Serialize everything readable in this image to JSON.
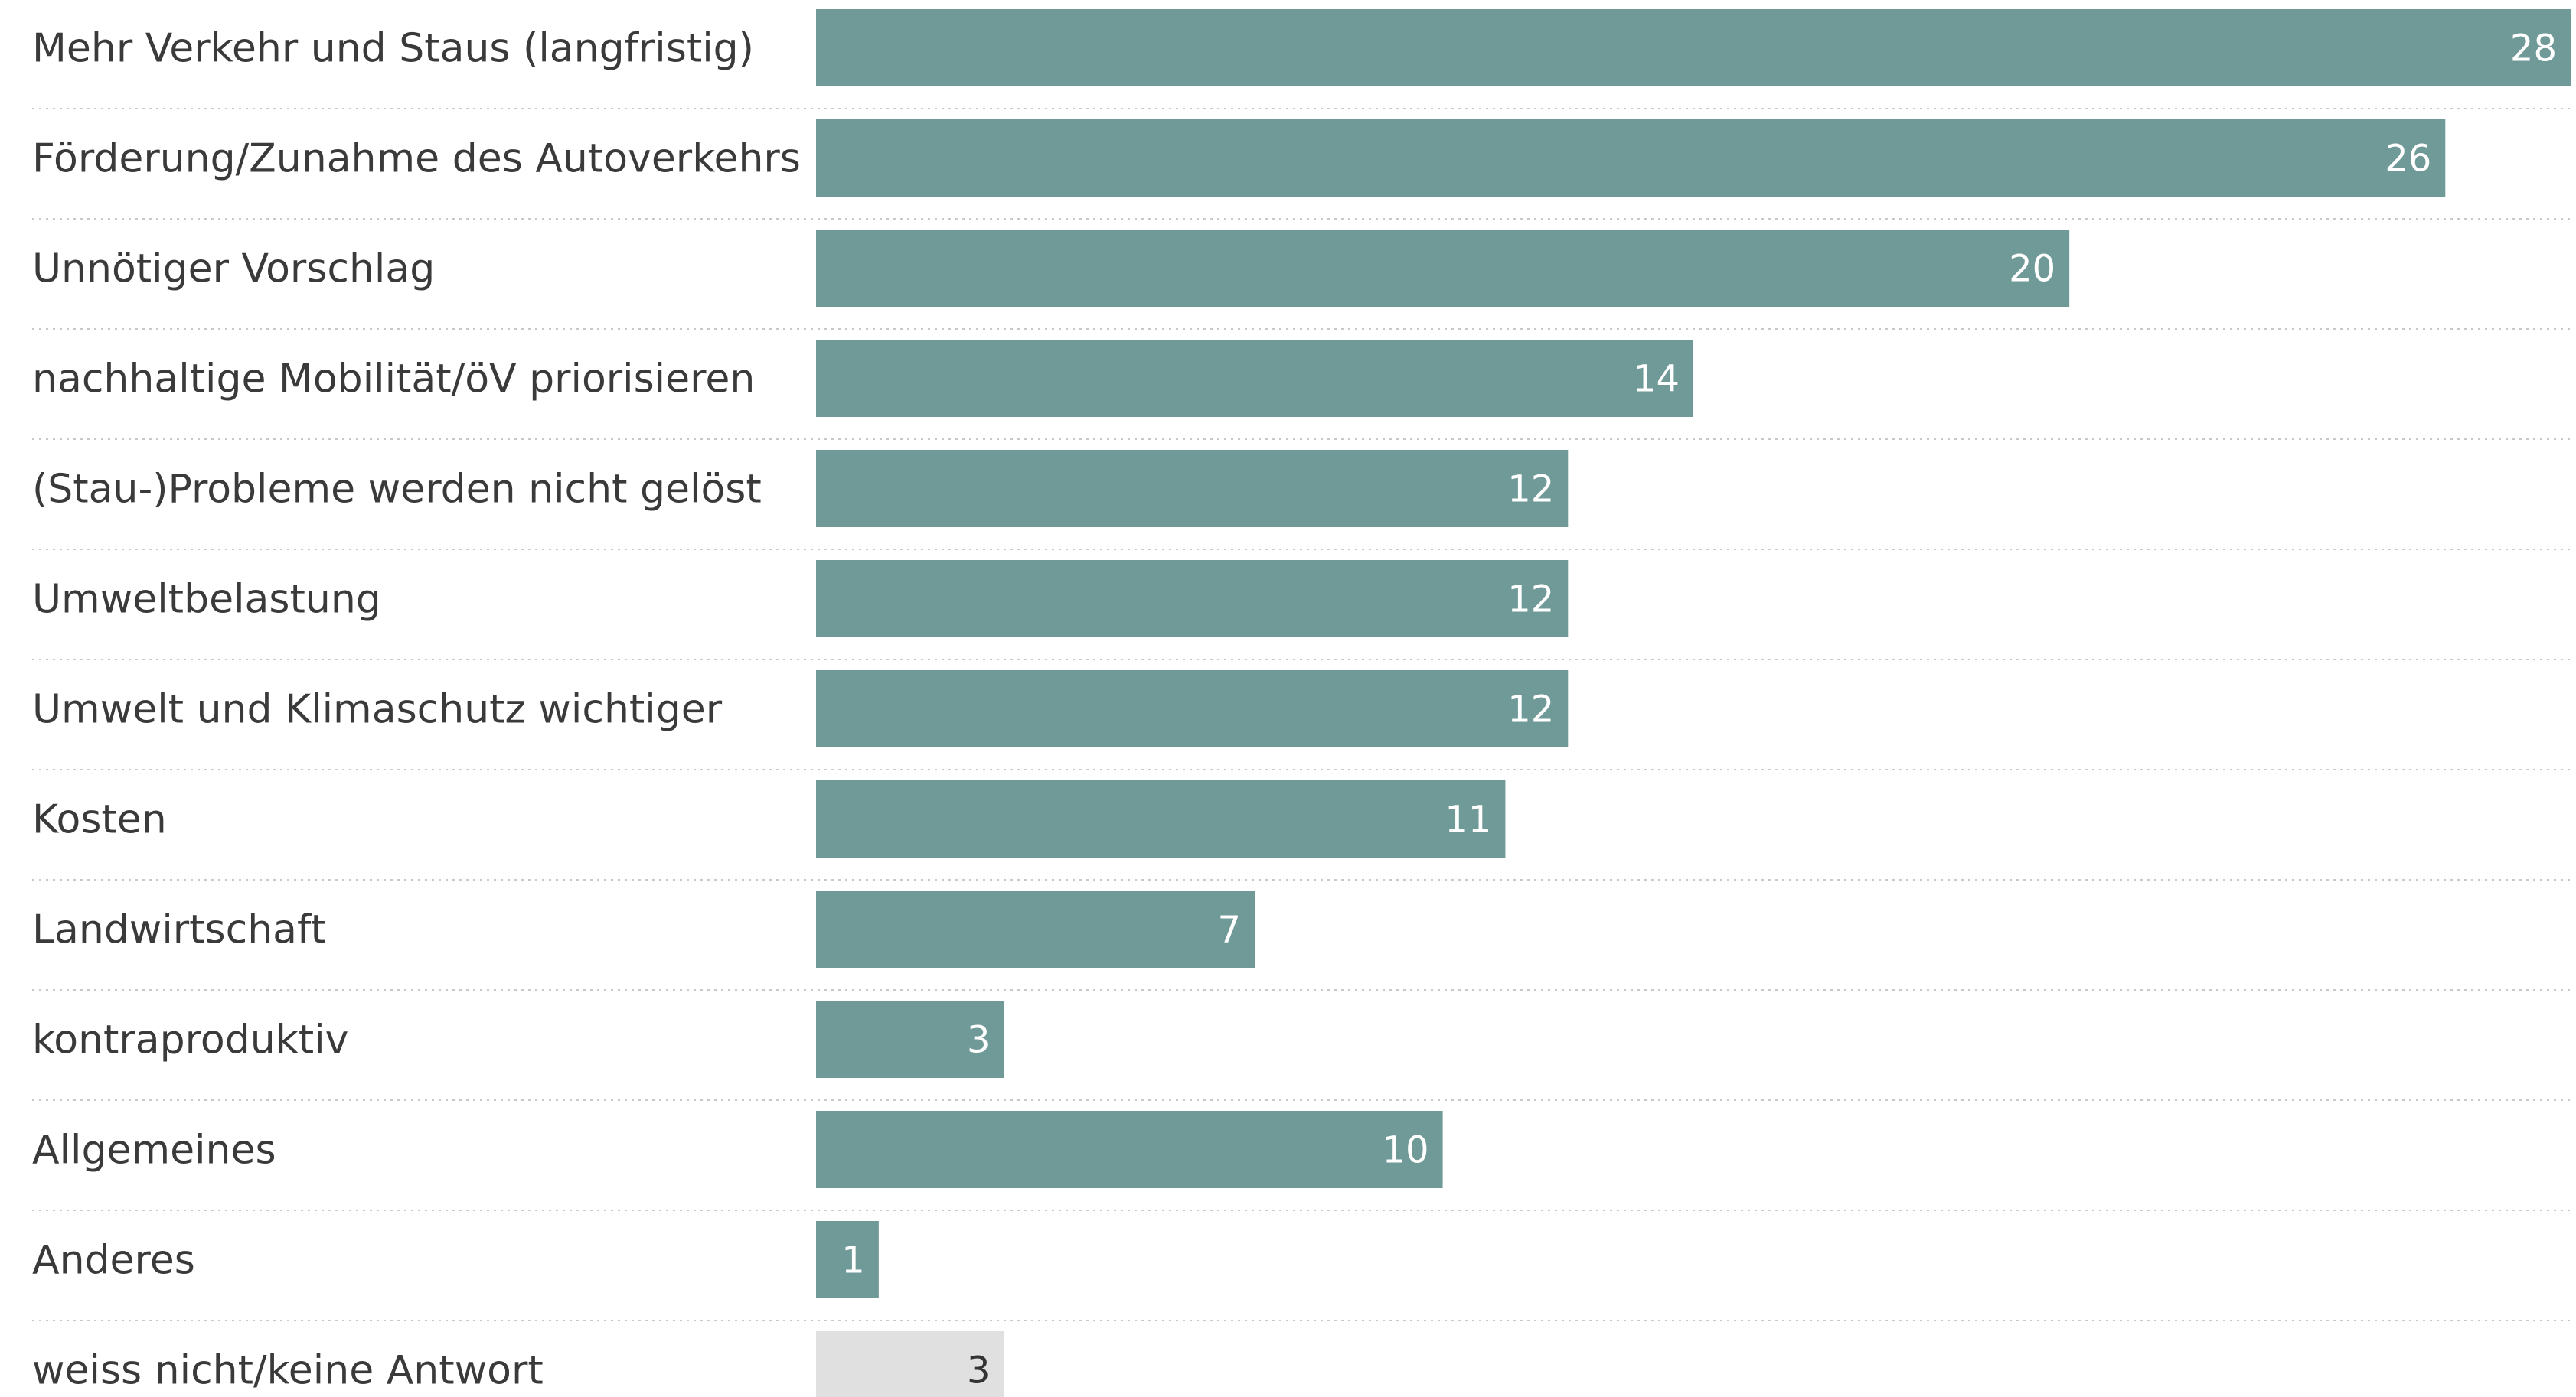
{
  "chart_data": {
    "type": "bar",
    "orientation": "horizontal",
    "categories": [
      "Mehr Verkehr und Staus (langfristig)",
      "Förderung/Zunahme des Autoverkehrs",
      "Unnötiger Vorschlag",
      "nachhaltige Mobilität/öV priorisieren",
      "(Stau-)Probleme werden nicht gelöst",
      "Umweltbelastung",
      "Umwelt und Klimaschutz wichtiger",
      "Kosten",
      "Landwirtschaft",
      "kontraproduktiv",
      "Allgemeines",
      "Anderes",
      "weiss nicht/keine Antwort"
    ],
    "values": [
      28,
      26,
      20,
      14,
      12,
      12,
      12,
      11,
      7,
      3,
      10,
      1,
      3
    ],
    "bar_colors": [
      "#6f9a98",
      "#6f9a98",
      "#6f9a98",
      "#6f9a98",
      "#6f9a98",
      "#6f9a98",
      "#6f9a98",
      "#6f9a98",
      "#6f9a98",
      "#6f9a98",
      "#6f9a98",
      "#6f9a98",
      "#e0e0e0"
    ],
    "xlim": [
      0,
      28
    ],
    "grid": false,
    "legend": "none",
    "title": "",
    "xlabel": "",
    "ylabel": ""
  }
}
